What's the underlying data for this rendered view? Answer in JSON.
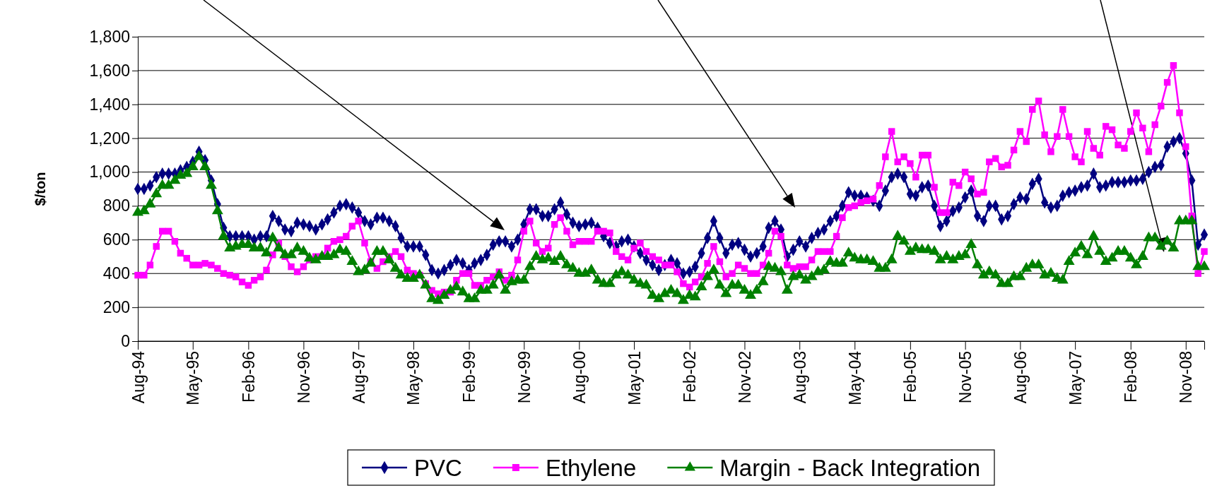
{
  "chart_data": {
    "type": "line",
    "ylabel": "$/ton",
    "legend": "bottom",
    "grid": "y",
    "xlim": [
      "1994-08",
      "2009-02"
    ],
    "ylim": [
      0,
      1800
    ],
    "yticks": [
      0,
      200,
      400,
      600,
      800,
      {
        "value": 1000,
        "label": "1,000"
      },
      {
        "value": 1200,
        "label": "1,200"
      },
      {
        "value": 1400,
        "label": "1,400"
      },
      {
        "value": 1600,
        "label": "1,600"
      },
      {
        "value": 1800,
        "label": "1,800"
      }
    ],
    "xticks": [
      {
        "value": "1994-08",
        "label": "Aug-94"
      },
      {
        "value": "1995-05",
        "label": "May-95"
      },
      {
        "value": "1996-02",
        "label": "Feb-96"
      },
      {
        "value": "1996-11",
        "label": "Nov-96"
      },
      {
        "value": "1997-08",
        "label": "Aug-97"
      },
      {
        "value": "1998-05",
        "label": "May-98"
      },
      {
        "value": "1999-02",
        "label": "Feb-99"
      },
      {
        "value": "1999-11",
        "label": "Nov-99"
      },
      {
        "value": "2000-08",
        "label": "Aug-00"
      },
      {
        "value": "2001-05",
        "label": "May-01"
      },
      {
        "value": "2002-02",
        "label": "Feb-02"
      },
      {
        "value": "2002-11",
        "label": "Nov-02"
      },
      {
        "value": "2003-08",
        "label": "Aug-03"
      },
      {
        "value": "2004-05",
        "label": "May-04"
      },
      {
        "value": "2005-02",
        "label": "Feb-05"
      },
      {
        "value": "2005-11",
        "label": "Nov-05"
      },
      {
        "value": "2006-08",
        "label": "Aug-06"
      },
      {
        "value": "2007-05",
        "label": "May-07"
      },
      {
        "value": "2008-02",
        "label": "Feb-08"
      },
      {
        "value": "2008-11",
        "label": "Nov-08"
      }
    ],
    "x": [
      "1994-08",
      "1994-09",
      "1994-10",
      "1994-11",
      "1994-12",
      "1995-01",
      "1995-02",
      "1995-03",
      "1995-04",
      "1995-05",
      "1995-06",
      "1995-07",
      "1995-08",
      "1995-09",
      "1995-10",
      "1995-11",
      "1995-12",
      "1996-01",
      "1996-02",
      "1996-03",
      "1996-04",
      "1996-05",
      "1996-06",
      "1996-07",
      "1996-08",
      "1996-09",
      "1996-10",
      "1996-11",
      "1996-12",
      "1997-01",
      "1997-02",
      "1997-03",
      "1997-04",
      "1997-05",
      "1997-06",
      "1997-07",
      "1997-08",
      "1997-09",
      "1997-10",
      "1997-11",
      "1997-12",
      "1998-01",
      "1998-02",
      "1998-03",
      "1998-04",
      "1998-05",
      "1998-06",
      "1998-07",
      "1998-08",
      "1998-09",
      "1998-10",
      "1998-11",
      "1998-12",
      "1999-01",
      "1999-02",
      "1999-03",
      "1999-04",
      "1999-05",
      "1999-06",
      "1999-07",
      "1999-08",
      "1999-09",
      "1999-10",
      "1999-11",
      "1999-12",
      "2000-01",
      "2000-02",
      "2000-03",
      "2000-04",
      "2000-05",
      "2000-06",
      "2000-07",
      "2000-08",
      "2000-09",
      "2000-10",
      "2000-11",
      "2000-12",
      "2001-01",
      "2001-02",
      "2001-03",
      "2001-04",
      "2001-05",
      "2001-06",
      "2001-07",
      "2001-08",
      "2001-09",
      "2001-10",
      "2001-11",
      "2001-12",
      "2002-01",
      "2002-02",
      "2002-03",
      "2002-04",
      "2002-05",
      "2002-06",
      "2002-07",
      "2002-08",
      "2002-09",
      "2002-10",
      "2002-11",
      "2002-12",
      "2003-01",
      "2003-02",
      "2003-03",
      "2003-04",
      "2003-05",
      "2003-06",
      "2003-07",
      "2003-08",
      "2003-09",
      "2003-10",
      "2003-11",
      "2003-12",
      "2004-01",
      "2004-02",
      "2004-03",
      "2004-04",
      "2004-05",
      "2004-06",
      "2004-07",
      "2004-08",
      "2004-09",
      "2004-10",
      "2004-11",
      "2004-12",
      "2005-01",
      "2005-02",
      "2005-03",
      "2005-04",
      "2005-05",
      "2005-06",
      "2005-07",
      "2005-08",
      "2005-09",
      "2005-10",
      "2005-11",
      "2005-12",
      "2006-01",
      "2006-02",
      "2006-03",
      "2006-04",
      "2006-05",
      "2006-06",
      "2006-07",
      "2006-08",
      "2006-09",
      "2006-10",
      "2006-11",
      "2006-12",
      "2007-01",
      "2007-02",
      "2007-03",
      "2007-04",
      "2007-05",
      "2007-06",
      "2007-07",
      "2007-08",
      "2007-09",
      "2007-10",
      "2007-11",
      "2007-12",
      "2008-01",
      "2008-02",
      "2008-03",
      "2008-04",
      "2008-05",
      "2008-06",
      "2008-07",
      "2008-08",
      "2008-09",
      "2008-10",
      "2008-11",
      "2008-12",
      "2009-01",
      "2009-02"
    ],
    "series": [
      {
        "name": "PVC",
        "color": "#000080",
        "marker": "diamond",
        "values": [
          900,
          900,
          920,
          970,
          990,
          990,
          990,
          1010,
          1030,
          1060,
          1120,
          1070,
          950,
          810,
          670,
          620,
          620,
          620,
          620,
          600,
          620,
          620,
          740,
          710,
          660,
          650,
          700,
          690,
          680,
          660,
          690,
          720,
          760,
          800,
          810,
          790,
          760,
          710,
          690,
          730,
          730,
          710,
          680,
          610,
          560,
          560,
          560,
          510,
          420,
          400,
          420,
          450,
          480,
          460,
          420,
          460,
          480,
          510,
          570,
          590,
          590,
          560,
          600,
          690,
          780,
          780,
          740,
          740,
          780,
          820,
          750,
          700,
          680,
          690,
          700,
          670,
          620,
          580,
          560,
          590,
          600,
          560,
          520,
          480,
          450,
          420,
          450,
          480,
          460,
          400,
          410,
          440,
          520,
          610,
          710,
          610,
          520,
          570,
          580,
          540,
          500,
          520,
          560,
          670,
          710,
          660,
          500,
          540,
          590,
          560,
          610,
          640,
          660,
          710,
          740,
          800,
          880,
          860,
          860,
          850,
          830,
          800,
          890,
          970,
          990,
          970,
          870,
          860,
          910,
          920,
          800,
          680,
          710,
          770,
          790,
          850,
          890,
          740,
          710,
          800,
          800,
          720,
          740,
          810,
          850,
          840,
          930,
          960,
          820,
          790,
          800,
          860,
          880,
          890,
          910,
          920,
          990,
          910,
          920,
          940,
          940,
          940,
          950,
          950,
          960,
          1000,
          1030,
          1040,
          1150,
          1180,
          1200,
          1110,
          950,
          570,
          630
        ]
      },
      {
        "name": "Ethylene",
        "color": "#ff00ff",
        "marker": "square",
        "values": [
          390,
          390,
          450,
          560,
          650,
          650,
          590,
          520,
          490,
          450,
          450,
          460,
          450,
          430,
          400,
          390,
          380,
          350,
          330,
          360,
          380,
          420,
          510,
          580,
          500,
          440,
          410,
          440,
          480,
          500,
          500,
          550,
          590,
          600,
          620,
          680,
          710,
          580,
          470,
          430,
          470,
          500,
          530,
          500,
          420,
          400,
          390,
          340,
          300,
          280,
          290,
          290,
          360,
          400,
          400,
          330,
          330,
          360,
          380,
          410,
          360,
          390,
          480,
          650,
          710,
          580,
          530,
          550,
          690,
          730,
          650,
          570,
          590,
          590,
          590,
          650,
          650,
          640,
          530,
          500,
          480,
          550,
          580,
          530,
          500,
          480,
          450,
          450,
          410,
          340,
          320,
          350,
          380,
          460,
          560,
          470,
          380,
          400,
          450,
          430,
          400,
          400,
          450,
          520,
          650,
          620,
          450,
          430,
          440,
          440,
          480,
          530,
          530,
          530,
          620,
          730,
          790,
          800,
          820,
          830,
          840,
          920,
          1090,
          1240,
          1060,
          1090,
          1050,
          970,
          1100,
          1100,
          910,
          760,
          760,
          940,
          920,
          1000,
          960,
          870,
          880,
          1060,
          1080,
          1030,
          1040,
          1130,
          1240,
          1180,
          1370,
          1420,
          1220,
          1120,
          1210,
          1370,
          1210,
          1090,
          1060,
          1240,
          1140,
          1100,
          1270,
          1250,
          1160,
          1140,
          1240,
          1350,
          1260,
          1120,
          1280,
          1390,
          1530,
          1630,
          1350,
          1150,
          740,
          400,
          530
        ]
      },
      {
        "name": "Margin - Back Integration",
        "color": "#008000",
        "marker": "triangle",
        "values": [
          760,
          770,
          810,
          870,
          920,
          920,
          950,
          980,
          990,
          1030,
          1090,
          1030,
          920,
          770,
          620,
          550,
          560,
          570,
          570,
          550,
          550,
          520,
          610,
          550,
          510,
          510,
          550,
          530,
          490,
          480,
          500,
          500,
          510,
          540,
          530,
          470,
          410,
          420,
          460,
          530,
          530,
          480,
          430,
          390,
          370,
          370,
          390,
          330,
          250,
          240,
          270,
          300,
          320,
          290,
          250,
          250,
          300,
          300,
          330,
          390,
          300,
          350,
          360,
          360,
          440,
          500,
          480,
          490,
          470,
          500,
          450,
          430,
          400,
          400,
          420,
          360,
          340,
          340,
          390,
          410,
          390,
          360,
          340,
          330,
          270,
          250,
          280,
          300,
          280,
          240,
          270,
          260,
          320,
          380,
          420,
          330,
          280,
          330,
          330,
          300,
          270,
          300,
          350,
          440,
          430,
          410,
          300,
          380,
          390,
          360,
          380,
          410,
          420,
          470,
          460,
          460,
          520,
          490,
          480,
          480,
          470,
          430,
          430,
          480,
          620,
          590,
          530,
          550,
          540,
          540,
          530,
          480,
          500,
          480,
          500,
          510,
          570,
          450,
          390,
          410,
          390,
          340,
          340,
          380,
          380,
          430,
          450,
          450,
          390,
          400,
          370,
          360,
          470,
          520,
          560,
          510,
          620,
          530,
          470,
          490,
          530,
          530,
          490,
          450,
          500,
          610,
          610,
          560,
          590,
          550,
          710,
          710,
          710,
          440,
          440
        ]
      }
    ]
  }
}
